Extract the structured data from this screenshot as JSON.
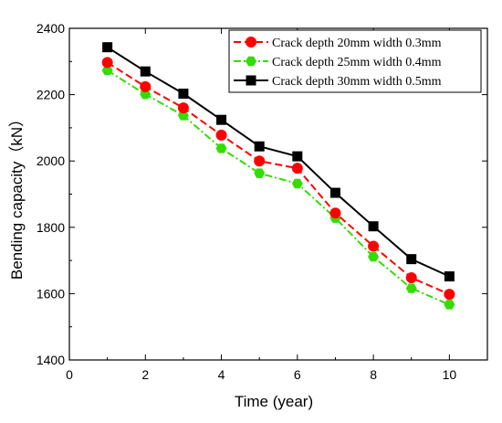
{
  "chart_data": {
    "type": "line",
    "title": "",
    "xlabel": "Time (year)",
    "ylabel": "Bending capacity（kN）",
    "xlim": [
      0,
      11
    ],
    "ylim": [
      1400,
      2400
    ],
    "xticks": [
      0,
      2,
      4,
      6,
      8,
      10
    ],
    "yticks": [
      1400,
      1600,
      1800,
      2000,
      2200,
      2400
    ],
    "grid": false,
    "legend_position": "top-right",
    "x": [
      1,
      2,
      3,
      4,
      5,
      6,
      7,
      8,
      9,
      10
    ],
    "series": [
      {
        "name": "Crack depth 20mm width 0.3mm",
        "color": "#ff0000",
        "marker": "circle",
        "line_style": "dashed",
        "values": [
          2297,
          2224,
          2160,
          2078,
          2000,
          1978,
          1843,
          1743,
          1648,
          1598
        ]
      },
      {
        "name": "Crack depth 25mm width 0.4mm",
        "color": "#33dd00",
        "marker": "hexagon",
        "line_style": "dash-dot",
        "values": [
          2273,
          2201,
          2137,
          2038,
          1963,
          1932,
          1828,
          1711,
          1616,
          1567
        ]
      },
      {
        "name": "Crack depth 30mm width 0.5mm",
        "color": "#000000",
        "marker": "square",
        "line_style": "solid",
        "values": [
          2343,
          2270,
          2203,
          2124,
          2044,
          2014,
          1904,
          1803,
          1704,
          1652
        ]
      }
    ]
  }
}
